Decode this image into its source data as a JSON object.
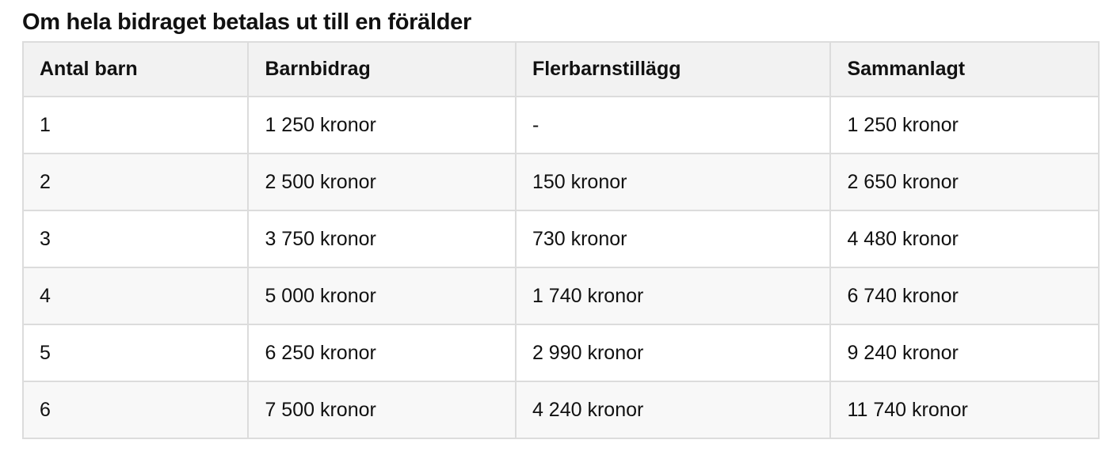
{
  "title": "Om hela bidraget betalas ut till en förälder",
  "table": {
    "headers": [
      "Antal barn",
      "Barnbidrag",
      "Flerbarnstillägg",
      "Sammanlagt"
    ],
    "rows": [
      [
        "1",
        "1 250 kronor",
        "-",
        "1 250 kronor"
      ],
      [
        "2",
        "2 500 kronor",
        "150 kronor",
        "2 650 kronor"
      ],
      [
        "3",
        "3 750 kronor",
        "730 kronor",
        "4 480 kronor"
      ],
      [
        "4",
        "5 000 kronor",
        "1 740 kronor",
        "6 740 kronor"
      ],
      [
        "5",
        "6 250 kronor",
        "2 990 kronor",
        "9 240 kronor"
      ],
      [
        "6",
        "7 500 kronor",
        "4 240 kronor",
        "11 740 kronor"
      ]
    ]
  }
}
